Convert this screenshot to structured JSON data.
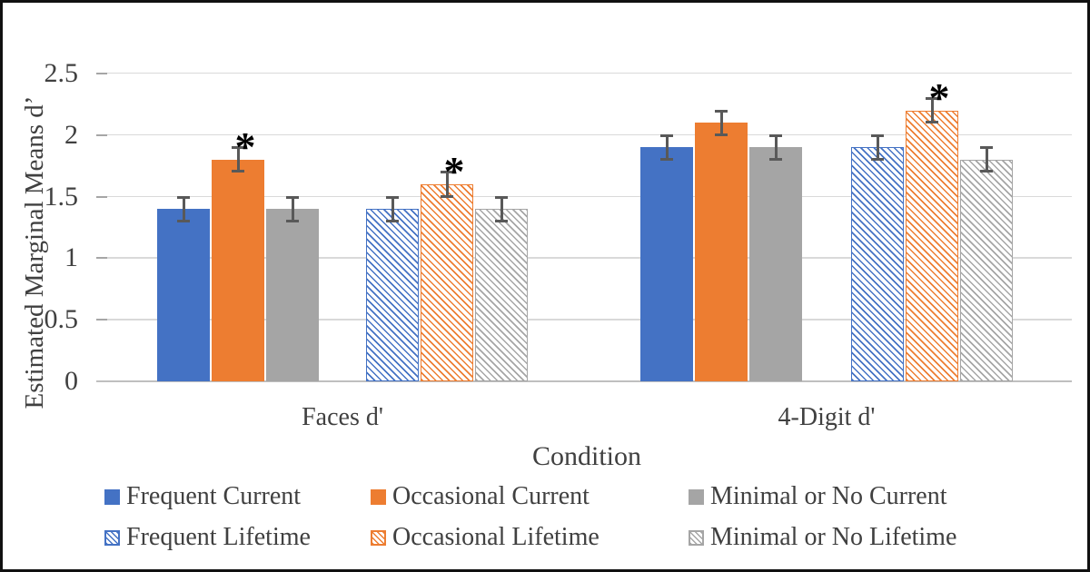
{
  "chart_data": {
    "type": "bar",
    "title": "",
    "xlabel": "Condition",
    "ylabel": "Estimated Marginal Means d’",
    "categories": [
      "Faces d'",
      "4-Digit d'"
    ],
    "ylim": [
      0,
      2.75
    ],
    "ytick_step": 0.5,
    "y_ticks": [
      "0",
      "0.5",
      "1",
      "1.5",
      "2",
      "2.5"
    ],
    "grid": true,
    "legend_position": "bottom",
    "error_bar": 0.1,
    "significance_marker": "*",
    "series": [
      {
        "name": "Frequent Current",
        "values": [
          1.4,
          1.9
        ],
        "color": "#4472C4",
        "pattern": "solid",
        "significant": [
          false,
          false
        ]
      },
      {
        "name": "Occasional Current",
        "values": [
          1.8,
          2.1
        ],
        "color": "#ED7D31",
        "pattern": "solid",
        "significant": [
          true,
          false
        ]
      },
      {
        "name": "Minimal or No Current",
        "values": [
          1.4,
          1.9
        ],
        "color": "#A5A5A5",
        "pattern": "solid",
        "significant": [
          false,
          false
        ]
      },
      {
        "name": "Frequent Lifetime",
        "values": [
          1.4,
          1.9
        ],
        "color": "#4472C4",
        "pattern": "hatch",
        "significant": [
          false,
          false
        ]
      },
      {
        "name": "Occasional Lifetime",
        "values": [
          1.6,
          2.2
        ],
        "color": "#ED7D31",
        "pattern": "hatch",
        "significant": [
          true,
          true
        ]
      },
      {
        "name": "Minimal or No Lifetime",
        "values": [
          1.4,
          1.8
        ],
        "color": "#A5A5A5",
        "pattern": "hatch",
        "significant": [
          false,
          false
        ]
      }
    ]
  },
  "colors": {
    "background": "#FFFFFF",
    "frame": "#111111",
    "text": "#404040",
    "grid": "#D9D9D9",
    "axis": "#BFBFBF",
    "tick": "#A6A6A6",
    "error_bar": "#595959",
    "asterisk": "#000000"
  }
}
